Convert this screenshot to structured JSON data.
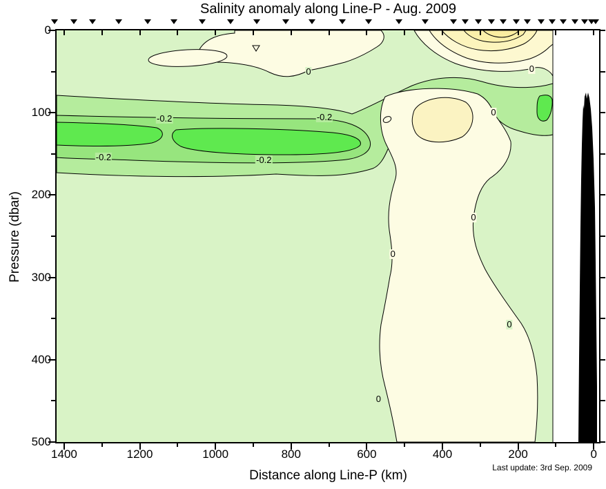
{
  "chart_data": {
    "type": "contour",
    "title": "Salinity anomaly along Line-P - Aug. 2009",
    "xlabel": "Distance along Line-P (km)",
    "ylabel": "Pressure (dbar)",
    "annotation": "Last update: 3rd Sep. 2009",
    "x_axis": {
      "range": [
        1420,
        -16
      ],
      "major_ticks": [
        1400,
        1200,
        1000,
        800,
        600,
        400,
        200,
        0
      ],
      "minor_ticks": [
        1300,
        1100,
        900,
        700,
        500,
        300,
        100
      ],
      "top_ticks": [
        1400,
        1300,
        1200,
        1100,
        1000,
        900,
        800,
        700,
        600,
        500,
        400,
        300,
        200,
        100,
        0
      ]
    },
    "y_axis": {
      "range": [
        0,
        500
      ],
      "major_ticks": [
        0,
        100,
        200,
        300,
        400,
        500
      ],
      "minor_ticks": [
        50,
        150,
        250,
        350,
        450
      ],
      "right_ticks": [
        0,
        50,
        100,
        150,
        200,
        250,
        300,
        350,
        400,
        450,
        500
      ]
    },
    "contour_interval": 0.1,
    "levels_shown": [
      -0.3,
      -0.2,
      -0.1,
      0,
      0.1,
      0.2,
      0.3
    ],
    "stations_km": [
      1425,
      1375,
      1325,
      1255,
      1180,
      1110,
      1035,
      960,
      890,
      815,
      745,
      665,
      595,
      515,
      445,
      370,
      340,
      305,
      270,
      240,
      205,
      175,
      140,
      110,
      80,
      50,
      25,
      5,
      -5
    ],
    "data_extent_east_km": 110,
    "contour_labels": [
      {
        "text": "-0.2",
        "km": 1135,
        "dbar": 107,
        "halo": "medium_green"
      },
      {
        "text": "-0.2",
        "km": 712,
        "dbar": 106,
        "halo": "medium_green"
      },
      {
        "text": "-0.2",
        "km": 1296,
        "dbar": 154,
        "halo": "medium_green"
      },
      {
        "text": "-0.2",
        "km": 872,
        "dbar": 158,
        "halo": "medium_green"
      },
      {
        "text": "0",
        "km": 754,
        "dbar": 50,
        "halo": "pale_green"
      },
      {
        "text": "0",
        "km": 265,
        "dbar": 100,
        "halo": "cream"
      },
      {
        "text": "0",
        "km": 164,
        "dbar": 47,
        "halo": "cream"
      },
      {
        "text": "0",
        "km": 318,
        "dbar": 227,
        "halo": "cream"
      },
      {
        "text": "0",
        "km": 531,
        "dbar": 272,
        "halo": "cream"
      },
      {
        "text": "0",
        "km": 223,
        "dbar": 357,
        "halo": "pale_green"
      },
      {
        "text": "0",
        "km": 569,
        "dbar": 448,
        "halo": "pale_green"
      }
    ],
    "regions": {
      "negative_core": "salinity anomaly < -0.3 centered near 900-1100 km at 100-150 dbar",
      "positive_core": "salinity anomaly > 0.2 at surface near 150-250 km",
      "positive_column": "anomaly > 0 column near 300-500 km from 120 dbar to 500 dbar",
      "bathymetry": "black seafloor/coast wedge east of ~50 km"
    },
    "colors": {
      "pale_green": "#d9f3c6",
      "medium_green": "#b5ec9d",
      "deep_green": "#97e57e",
      "bright_green": "#5fe94f",
      "cream": "#fdfce3",
      "yellow_1": "#fdf8d0",
      "yellow_2": "#fcf4bc",
      "yellow_3": "#fbf0aa",
      "yellow_4": "#faeda0",
      "column_yellow": "#fbf3c2",
      "contour_line": "#000000",
      "bathymetry": "#000000",
      "axis": "#000000"
    }
  }
}
